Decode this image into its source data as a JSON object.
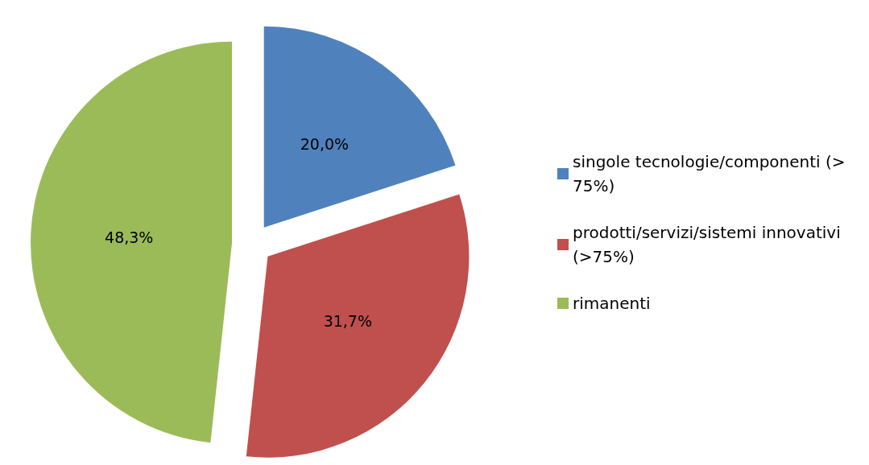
{
  "chart_data": {
    "type": "pie",
    "categories": [
      "singole tecnologie/componenti (> 75%)",
      "prodotti/servizi/sistemi innovativi (>75%)",
      "rimanenti"
    ],
    "values": [
      20.0,
      31.7,
      48.3
    ],
    "colors": [
      "#4f81bd",
      "#c0504d",
      "#9bbb59"
    ],
    "value_labels": [
      "20,0%",
      "31,7%",
      "48,3%"
    ],
    "legend": "right"
  }
}
